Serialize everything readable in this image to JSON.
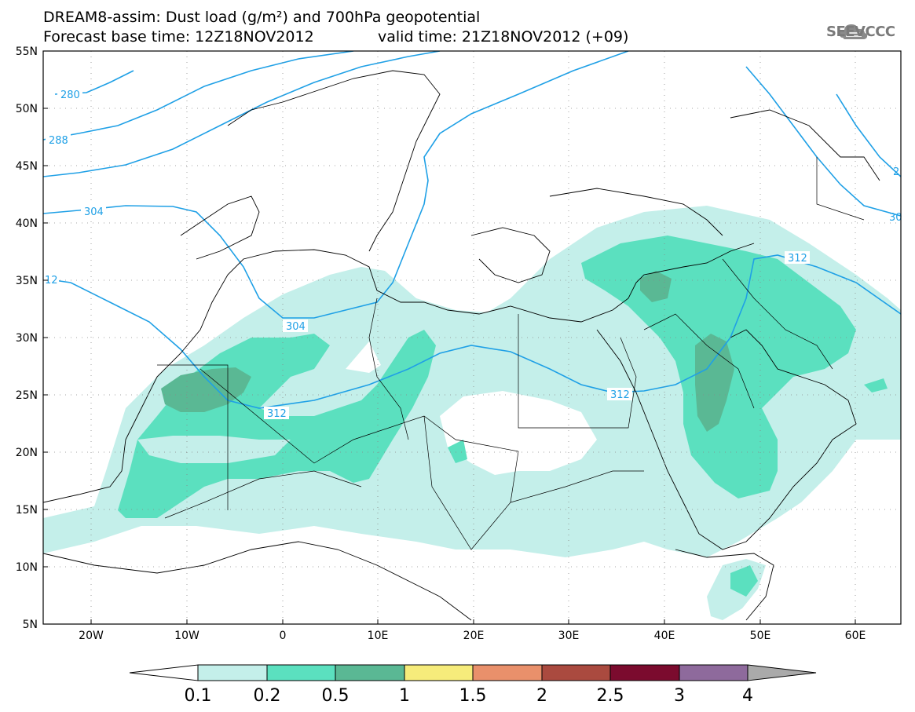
{
  "header": {
    "title_line1": "DREAM8-assim: Dust load (g/m²) and 700hPa geopotential",
    "base_time": "Forecast base time: 12Z18NOV2012",
    "valid_time": "valid time: 21Z18NOV2012 (+09)"
  },
  "logo": {
    "text": "SEEVCCC",
    "icon": "cloud-logo-icon"
  },
  "axes": {
    "lat_labels": [
      "55N",
      "50N",
      "45N",
      "40N",
      "35N",
      "30N",
      "25N",
      "20N",
      "15N",
      "10N",
      "5N"
    ],
    "lon_labels": [
      "20W",
      "10W",
      "0",
      "10E",
      "20E",
      "30E",
      "40E",
      "50E",
      "60E"
    ]
  },
  "contour_labels": [
    "280",
    "288",
    "304",
    "12",
    "304",
    "312",
    "312",
    "312",
    "2",
    "30"
  ],
  "colorbar": {
    "labels": [
      "0.1",
      "0.2",
      "0.5",
      "1",
      "1.5",
      "2",
      "2.5",
      "3",
      "4"
    ],
    "colors": [
      "#ffffff",
      "#c4efea",
      "#5be0bf",
      "#5ab894",
      "#f6ec7b",
      "#e9906b",
      "#aa4a3f",
      "#7b0b2e",
      "#8e6a9c",
      "#aaaaaa"
    ]
  },
  "colors": {
    "dust_low": "#c4efea",
    "dust_mid": "#5be0bf",
    "dust_high": "#5ab894",
    "geopotential": "#1fa0e6"
  }
}
